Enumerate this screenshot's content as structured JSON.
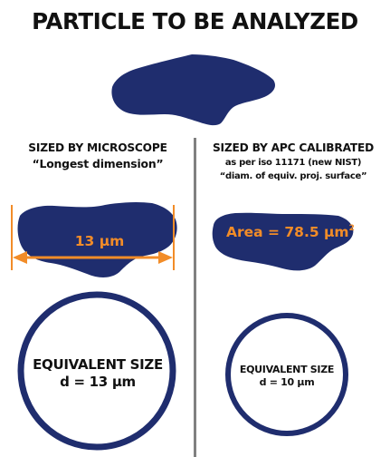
{
  "title": "PARTICLE TO BE ANALYZED",
  "colors": {
    "particle": "#1f2d6e",
    "measure": "#f28c28",
    "divider": "#808080",
    "text": "#111111"
  },
  "left": {
    "heading": "SIZED BY MICROSCOPE",
    "subheading": "“Longest dimension”",
    "measurement": "13 µm",
    "circle_line1": "EQUIVALENT SIZE",
    "circle_line2": "d = 13 µm"
  },
  "right": {
    "heading": "SIZED BY APC CALIBRATED",
    "subheading1": "as per iso 11171 (new NIST)",
    "subheading2": "“diam. of equiv. proj. surface”",
    "area_label": "Area = 78.5 µm",
    "area_exponent": "2",
    "circle_line1": "EQUIVALENT SIZE",
    "circle_line2": "d = 10 µm"
  }
}
